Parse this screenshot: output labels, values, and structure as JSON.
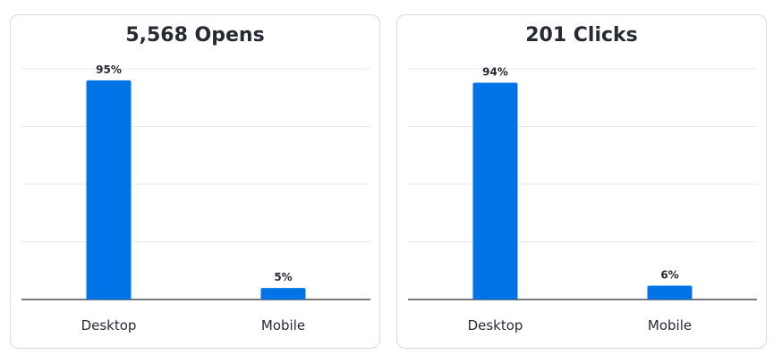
{
  "chart_data": [
    {
      "type": "bar",
      "title": "5,568 Opens",
      "categories": [
        "Desktop",
        "Mobile"
      ],
      "values": [
        95,
        5
      ],
      "data_labels": [
        "95%",
        "5%"
      ],
      "ylim": [
        0,
        100
      ],
      "grid": true,
      "color": "#0073e6"
    },
    {
      "type": "bar",
      "title": "201 Clicks",
      "categories": [
        "Desktop",
        "Mobile"
      ],
      "values": [
        94,
        6
      ],
      "data_labels": [
        "94%",
        "6%"
      ],
      "ylim": [
        0,
        100
      ],
      "grid": true,
      "color": "#0073e6"
    }
  ]
}
